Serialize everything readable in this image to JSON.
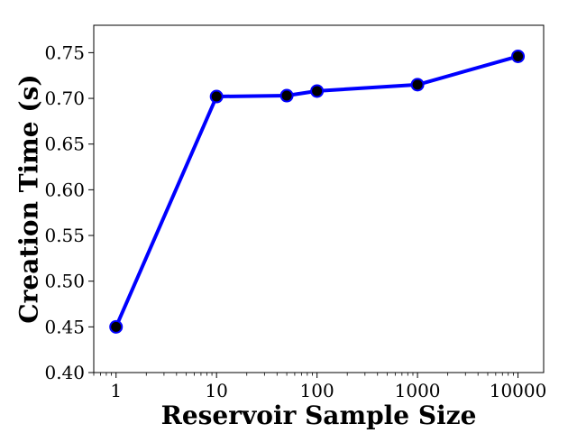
{
  "chart_data": {
    "type": "line",
    "title": "",
    "xlabel": "Reservoir Sample Size",
    "ylabel": "Creation Time (s)",
    "xscale": "log",
    "xlim": [
      0.6,
      18000
    ],
    "ylim": [
      0.4,
      0.78
    ],
    "xticks": [
      1,
      10,
      100,
      1000,
      10000
    ],
    "xtick_labels": [
      "1",
      "10",
      "100",
      "1000",
      "10000"
    ],
    "yticks": [
      0.4,
      0.45,
      0.5,
      0.55,
      0.6,
      0.65,
      0.7,
      0.75
    ],
    "ytick_labels": [
      "0.40",
      "0.45",
      "0.50",
      "0.55",
      "0.60",
      "0.65",
      "0.70",
      "0.75"
    ],
    "grid": false,
    "legend": "none",
    "series": [
      {
        "x": [
          1,
          10,
          50,
          100,
          1000,
          10000
        ],
        "y": [
          0.45,
          0.702,
          0.703,
          0.708,
          0.715,
          0.746
        ],
        "line_color": "#0000ff",
        "marker_face_color": "#000000",
        "marker_edge_color": "#0000ff"
      }
    ]
  }
}
